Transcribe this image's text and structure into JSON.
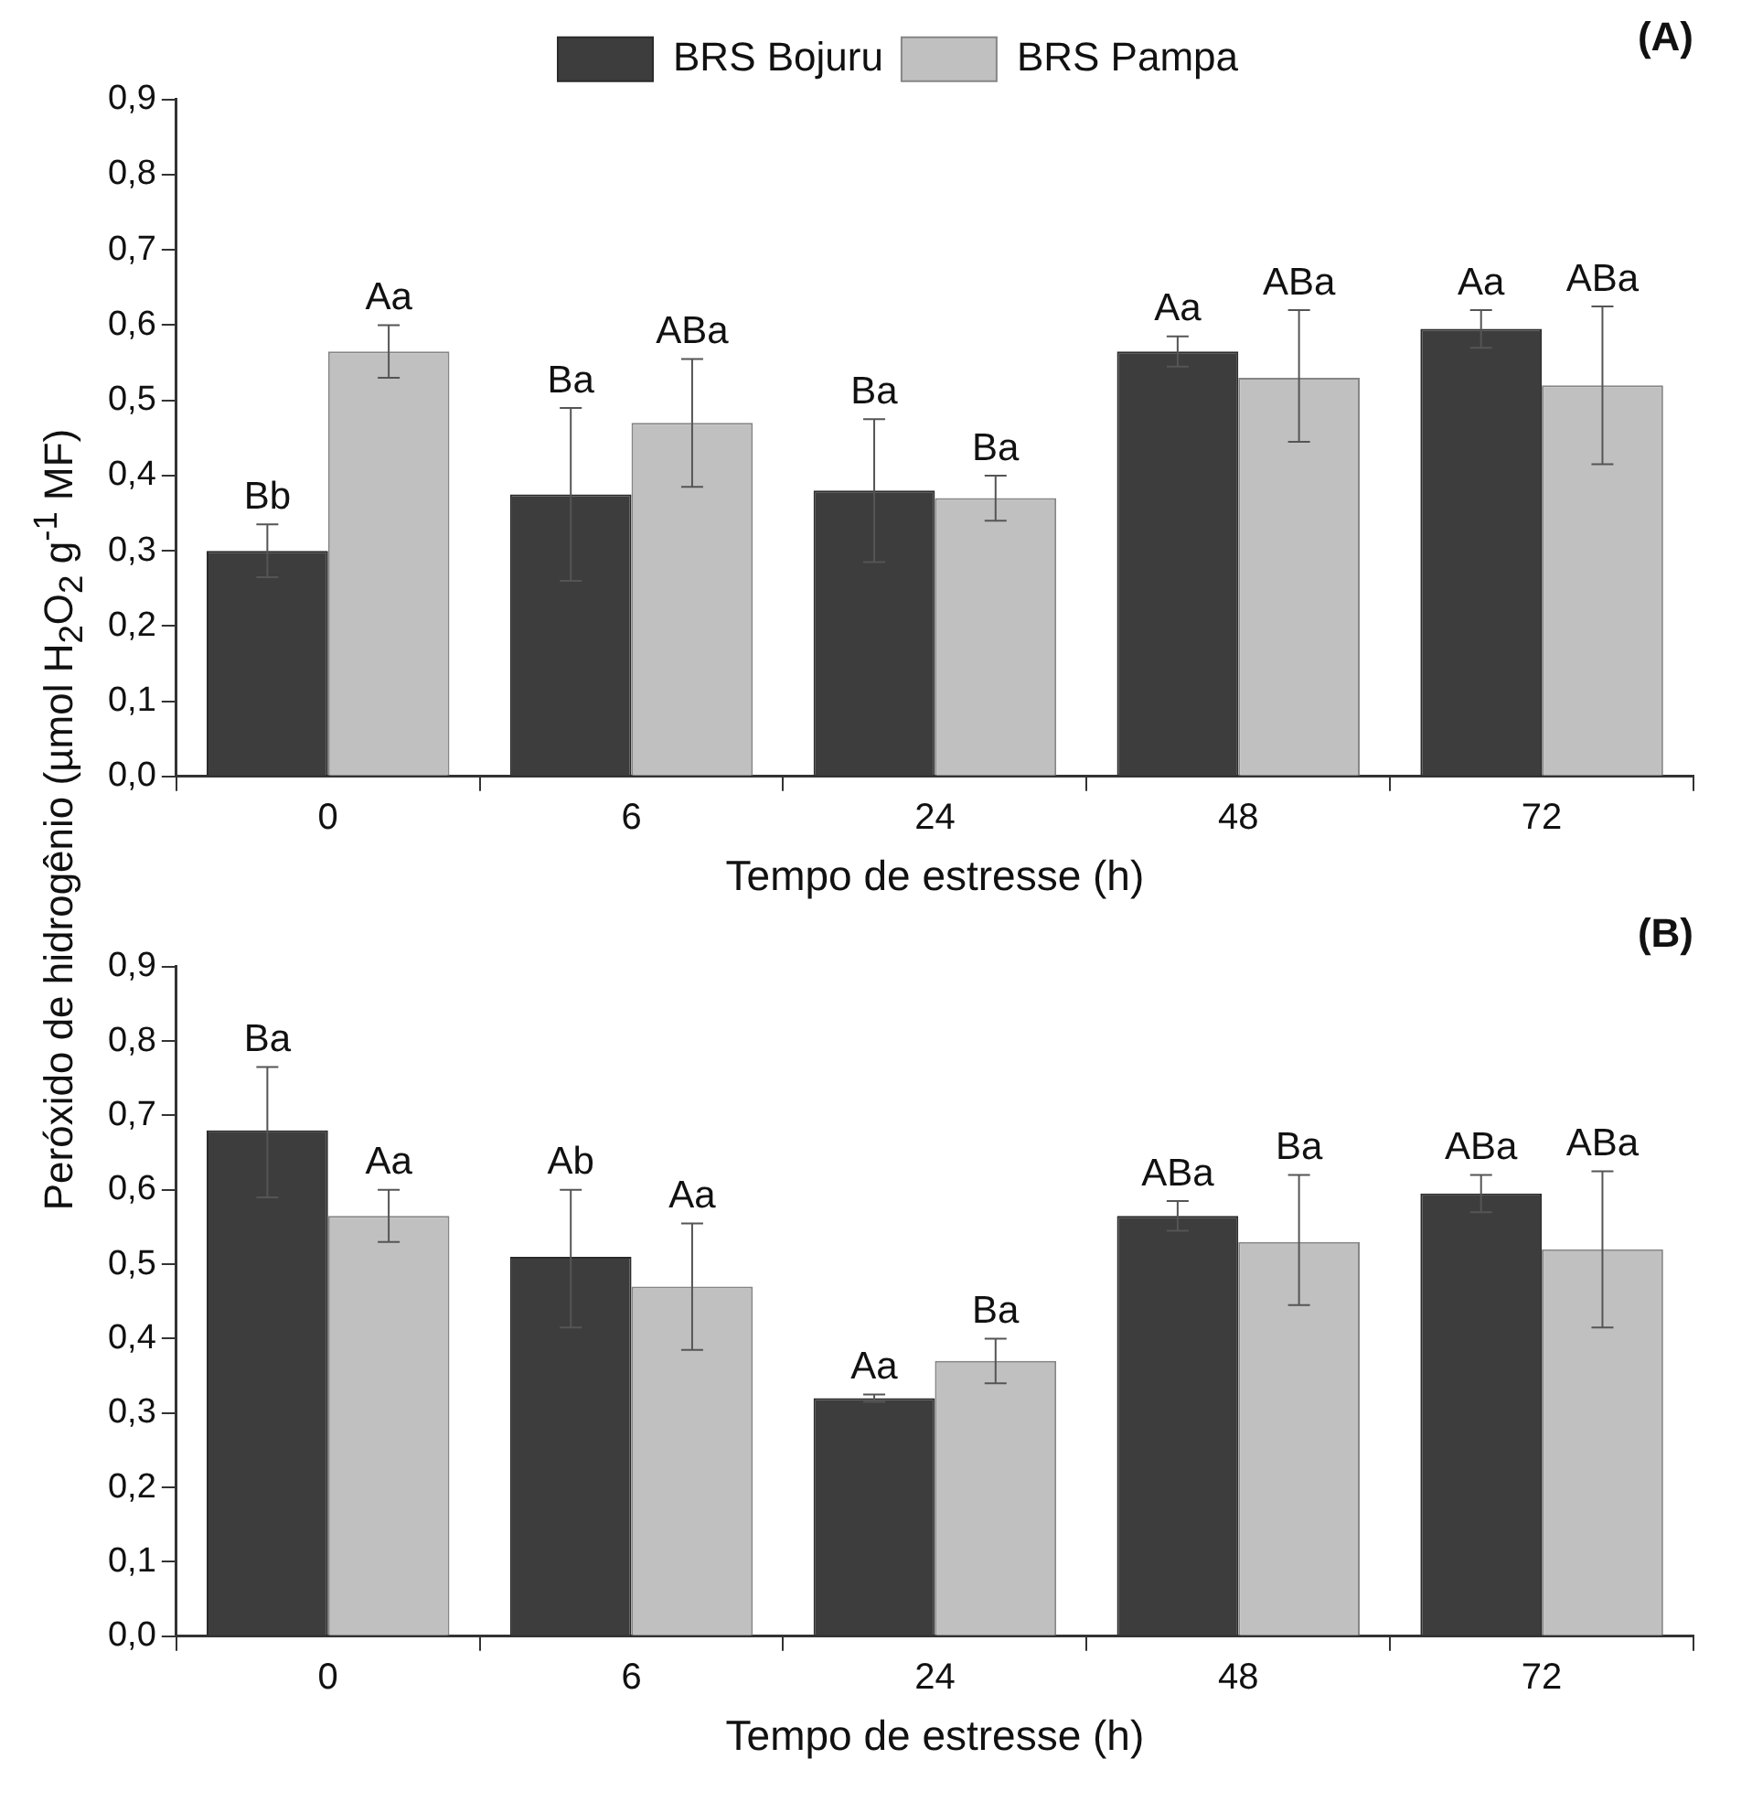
{
  "chart_data": [
    {
      "type": "bar",
      "title": "(A)",
      "xlabel": "Tempo de estresse (h)",
      "ylabel": "Peróxido de hidrogênio (µmol H$_{2}$O$_{2}$ g$^{-1}$ MF)",
      "categories": [
        "0",
        "6",
        "24",
        "48",
        "72"
      ],
      "series": [
        {
          "name": "BRS Bojuru",
          "color": "#3d3d3d",
          "values": [
            0.3,
            0.375,
            0.38,
            0.565,
            0.595
          ],
          "errors": [
            [
              0.265,
              0.335
            ],
            [
              0.26,
              0.49
            ],
            [
              0.285,
              0.475
            ],
            [
              0.545,
              0.585
            ],
            [
              0.57,
              0.62
            ]
          ],
          "value_labels": [
            "Bb",
            "Ba",
            "Ba",
            "Aa",
            "Aa"
          ]
        },
        {
          "name": "BRS Pampa",
          "color": "#c0c0c0",
          "values": [
            0.565,
            0.47,
            0.37,
            0.53,
            0.52
          ],
          "errors": [
            [
              0.53,
              0.6
            ],
            [
              0.385,
              0.555
            ],
            [
              0.34,
              0.4
            ],
            [
              0.445,
              0.62
            ],
            [
              0.415,
              0.625
            ]
          ],
          "value_labels": [
            "Aa",
            "ABa",
            "Ba",
            "ABa",
            "ABa"
          ]
        }
      ],
      "ylim": [
        0,
        0.9
      ],
      "yticks": [
        {
          "value": 0,
          "label": "0,0"
        },
        {
          "value": 0.1,
          "label": "0,1"
        },
        {
          "value": 0.2,
          "label": "0,2"
        },
        {
          "value": 0.3,
          "label": "0,3"
        },
        {
          "value": 0.4,
          "label": "0,4"
        },
        {
          "value": 0.5,
          "label": "0,5"
        },
        {
          "value": 0.6,
          "label": "0,6"
        },
        {
          "value": 0.7,
          "label": "0,7"
        },
        {
          "value": 0.8,
          "label": "0,8"
        },
        {
          "value": 0.9,
          "label": "0,9"
        }
      ],
      "grid": false,
      "legend": "top"
    },
    {
      "type": "bar",
      "title": "(B)",
      "xlabel": "Tempo de estresse (h)",
      "categories": [
        "0",
        "6",
        "24",
        "48",
        "72"
      ],
      "series": [
        {
          "color": "#3d3d3d",
          "values": [
            0.68,
            0.51,
            0.32,
            0.565,
            0.595
          ],
          "errors": [
            [
              0.59,
              0.765
            ],
            [
              0.415,
              0.6
            ],
            [
              0.315,
              0.325
            ],
            [
              0.545,
              0.585
            ],
            [
              0.57,
              0.62
            ]
          ],
          "value_labels": [
            "Ba",
            "Ab",
            "Aa",
            "ABa",
            "ABa"
          ]
        },
        {
          "color": "#c0c0c0",
          "values": [
            0.565,
            0.47,
            0.37,
            0.53,
            0.52
          ],
          "errors": [
            [
              0.53,
              0.6
            ],
            [
              0.385,
              0.555
            ],
            [
              0.34,
              0.4
            ],
            [
              0.445,
              0.62
            ],
            [
              0.415,
              0.625
            ]
          ],
          "value_labels": [
            "Aa",
            "Aa",
            "Ba",
            "Ba",
            "ABa"
          ]
        }
      ],
      "ylim": [
        0,
        0.9
      ],
      "yticks": [
        {
          "value": 0,
          "label": "0,0"
        },
        {
          "value": 0.1,
          "label": "0,1"
        },
        {
          "value": 0.2,
          "label": "0,2"
        },
        {
          "value": 0.3,
          "label": "0,3"
        },
        {
          "value": 0.4,
          "label": "0,4"
        },
        {
          "value": 0.5,
          "label": "0,5"
        },
        {
          "value": 0.6,
          "label": "0,6"
        },
        {
          "value": 0.7,
          "label": "0,7"
        },
        {
          "value": 0.8,
          "label": "0,8"
        },
        {
          "value": 0.9,
          "label": "0,9"
        }
      ],
      "grid": false,
      "legend": false
    }
  ]
}
